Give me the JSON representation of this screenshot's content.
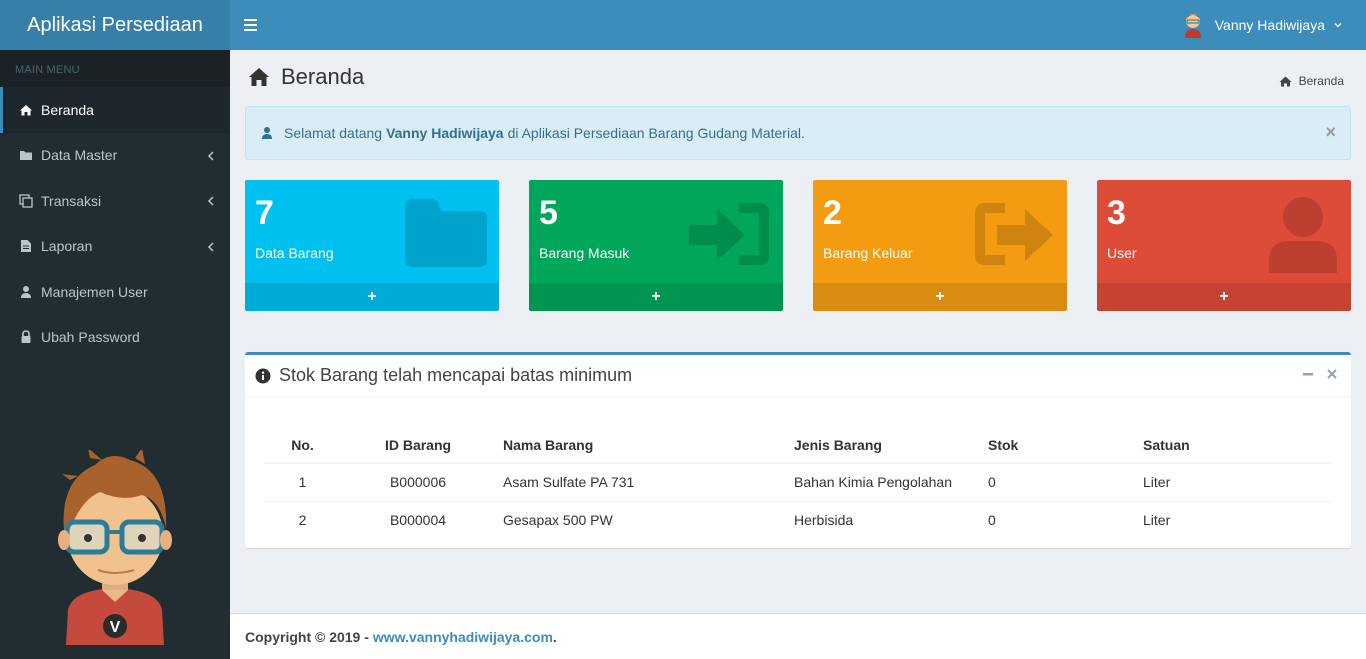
{
  "app": {
    "title": "Aplikasi Persediaan"
  },
  "topbar": {
    "user_name": "Vanny Hadiwijaya",
    "menu_icon": "bars-icon",
    "caret_icon": "chevron-down-icon"
  },
  "sidebar": {
    "header": "MAIN MENU",
    "items": [
      {
        "label": "Beranda",
        "icon": "home-icon",
        "active": true
      },
      {
        "label": "Data Master",
        "icon": "folder-icon",
        "has_children": true
      },
      {
        "label": "Transaksi",
        "icon": "clone-icon",
        "has_children": true
      },
      {
        "label": "Laporan",
        "icon": "file-icon",
        "has_children": true
      },
      {
        "label": "Manajemen User",
        "icon": "user-icon"
      },
      {
        "label": "Ubah Password",
        "icon": "lock-icon"
      }
    ]
  },
  "page": {
    "title": "Beranda",
    "breadcrumb": "Beranda"
  },
  "alert": {
    "prefix": "Selamat datang",
    "name": "Vanny Hadiwijaya",
    "suffix": "di Aplikasi Persediaan Barang Gudang Material.",
    "close": "×"
  },
  "stats": [
    {
      "value": "7",
      "label": "Data Barang",
      "color": "#00c0ef",
      "icon": "folder-icon"
    },
    {
      "value": "5",
      "label": "Barang Masuk",
      "color": "#00a65a",
      "icon": "sign-in-icon"
    },
    {
      "value": "2",
      "label": "Barang Keluar",
      "color": "#f39c12",
      "icon": "sign-out-icon"
    },
    {
      "value": "3",
      "label": "User",
      "color": "#dd4b39",
      "icon": "user-icon"
    }
  ],
  "stats_footer": "+",
  "stock_panel": {
    "title": "Stok Barang telah mencapai batas minimum",
    "columns": [
      "No.",
      "ID Barang",
      "Nama Barang",
      "Jenis Barang",
      "Stok",
      "Satuan"
    ],
    "rows": [
      [
        "1",
        "B000006",
        "Asam Sulfate PA 731",
        "Bahan Kimia Pengolahan",
        "0",
        "Liter"
      ],
      [
        "2",
        "B000004",
        "Gesapax 500 PW",
        "Herbisida",
        "0",
        "Liter"
      ]
    ]
  },
  "footer": {
    "copyright": "Copyright © 2019 -",
    "link": "www.vannyhadiwijaya.com",
    "end": "."
  },
  "colors": {
    "primary": "#3c8dbc",
    "sidebar": "#222d32",
    "info": "#00c0ef",
    "success": "#00a65a",
    "warning": "#f39c12",
    "danger": "#dd4b39"
  }
}
